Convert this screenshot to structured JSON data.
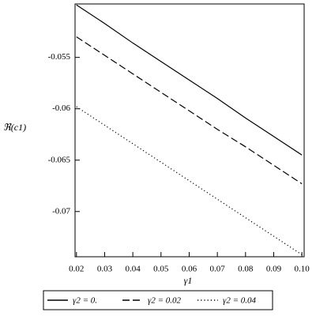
{
  "chart_data": {
    "type": "line",
    "x_label": "γ1",
    "y_label": "ℜ(c1)",
    "x": [
      0.02,
      0.03,
      0.04,
      0.05,
      0.06,
      0.07,
      0.08,
      0.09,
      0.1
    ],
    "series": [
      {
        "name": "γ2 = 0.",
        "color": "#000000",
        "dash": "solid",
        "values": [
          -0.0499,
          -0.0517,
          -0.0536,
          -0.0554,
          -0.0572,
          -0.059,
          -0.0609,
          -0.0627,
          -0.0645
        ]
      },
      {
        "name": "γ2 = 0.02",
        "color": "#000000",
        "dash": "dash",
        "values": [
          -0.053,
          -0.0548,
          -0.0566,
          -0.0584,
          -0.0602,
          -0.062,
          -0.0637,
          -0.0655,
          -0.0673
        ]
      },
      {
        "name": "γ2 = 0.04",
        "color": "#000000",
        "dash": "dot",
        "values": [
          -0.0598,
          -0.0616,
          -0.0634,
          -0.0652,
          -0.067,
          -0.0688,
          -0.0706,
          -0.0724,
          -0.0742
        ]
      }
    ],
    "xlim": [
      0.0195,
      0.1008
    ],
    "ylim": [
      -0.0744,
      -0.0498
    ],
    "xticks": [
      0.02,
      0.03,
      0.04,
      0.05,
      0.06,
      0.07,
      0.08,
      0.09,
      {
        "value": 0.1,
        "label": "0.10"
      }
    ],
    "yticks": [
      -0.055,
      -0.06,
      -0.065,
      -0.07
    ],
    "legend": "bottom"
  }
}
